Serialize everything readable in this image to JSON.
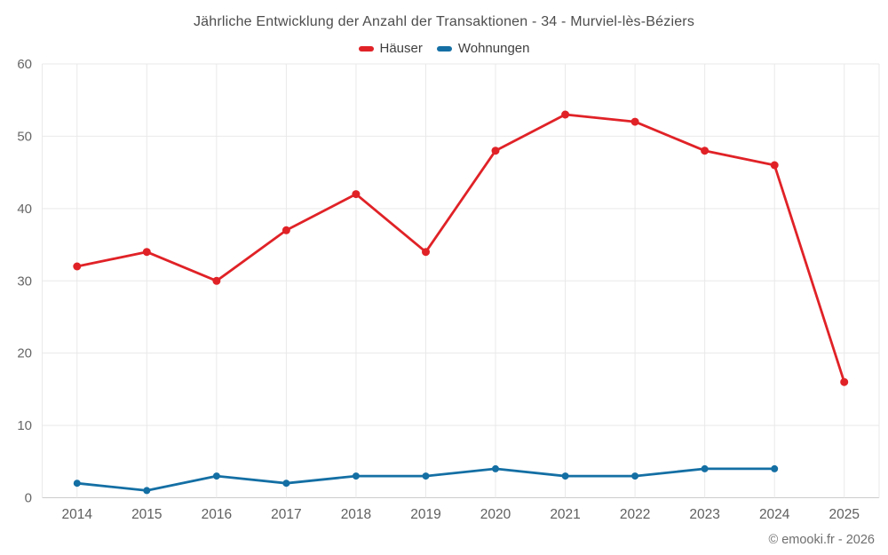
{
  "title": "Jährliche Entwicklung der Anzahl der Transaktionen - 34 - Murviel-lès-Béziers",
  "footer": "© emooki.fr - 2026",
  "colors": {
    "haeuser": "#e02227",
    "wohnungen": "#146fa4",
    "grid": "#e9e9e9",
    "axis_line": "#cccccc"
  },
  "chart_data": {
    "type": "line",
    "title": "Jährliche Entwicklung der Anzahl der Transaktionen - 34 - Murviel-lès-Béziers",
    "categories": [
      "2014",
      "2015",
      "2016",
      "2017",
      "2018",
      "2019",
      "2020",
      "2021",
      "2022",
      "2023",
      "2024",
      "2025"
    ],
    "series": [
      {
        "name": "Häuser",
        "color": "#e02227",
        "values": [
          32,
          34,
          30,
          37,
          42,
          34,
          48,
          53,
          52,
          48,
          46,
          16
        ]
      },
      {
        "name": "Wohnungen",
        "color": "#146fa4",
        "values": [
          2,
          1,
          3,
          2,
          3,
          3,
          4,
          3,
          3,
          4,
          4,
          null
        ]
      }
    ],
    "xlabel": "",
    "ylabel": "",
    "ylim": [
      0,
      60
    ],
    "yticks": [
      0,
      10,
      20,
      30,
      40,
      50,
      60
    ],
    "grid": true,
    "legend_position": "top"
  }
}
